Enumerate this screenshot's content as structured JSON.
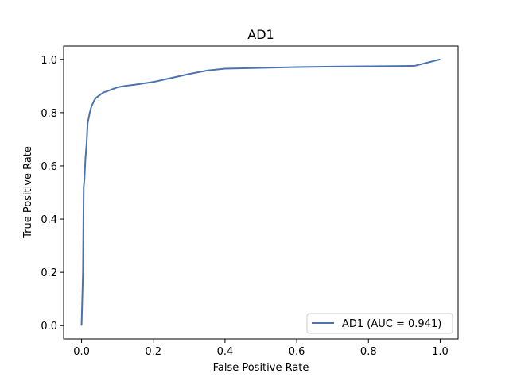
{
  "chart_data": {
    "type": "line",
    "title": "AD1",
    "xlabel": "False Positive Rate",
    "ylabel": "True Positive Rate",
    "xlim": [
      -0.05,
      1.05
    ],
    "ylim": [
      -0.05,
      1.05
    ],
    "xticks": [
      "0.0",
      "0.2",
      "0.4",
      "0.6",
      "0.8",
      "1.0"
    ],
    "yticks": [
      "0.0",
      "0.2",
      "0.4",
      "0.6",
      "0.8",
      "1.0"
    ],
    "grid": false,
    "legend_position": "lower-right",
    "series": [
      {
        "name": "AD1 (AUC = 0.941)",
        "color": "#4c72b0",
        "x": [
          0.0,
          0.004,
          0.006,
          0.008,
          0.011,
          0.014,
          0.017,
          0.02,
          0.023,
          0.027,
          0.03,
          0.035,
          0.04,
          0.05,
          0.06,
          0.075,
          0.09,
          0.1,
          0.12,
          0.15,
          0.2,
          0.25,
          0.3,
          0.35,
          0.4,
          0.5,
          0.6,
          0.7,
          0.8,
          0.9,
          0.93,
          1.0
        ],
        "y": [
          0.0,
          0.2,
          0.52,
          0.55,
          0.63,
          0.68,
          0.76,
          0.78,
          0.8,
          0.82,
          0.83,
          0.845,
          0.855,
          0.865,
          0.875,
          0.882,
          0.89,
          0.895,
          0.9,
          0.905,
          0.915,
          0.93,
          0.945,
          0.958,
          0.965,
          0.968,
          0.971,
          0.973,
          0.974,
          0.975,
          0.976,
          1.0
        ]
      }
    ]
  }
}
